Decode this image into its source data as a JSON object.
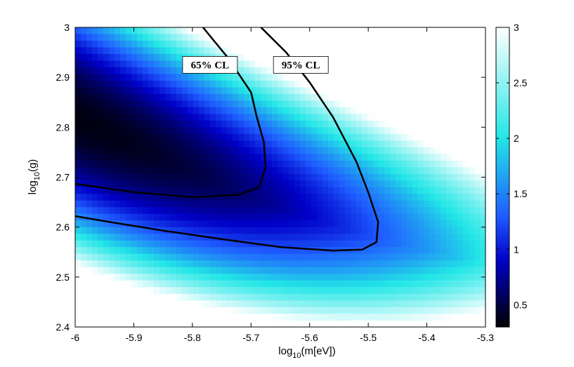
{
  "chart_data": {
    "type": "heatmap",
    "title": "",
    "xlabel": {
      "base": "log",
      "sub": "10",
      "rest": "(m[eV])"
    },
    "ylabel": {
      "base": "log",
      "sub": "10",
      "rest": "(g)"
    },
    "xlim": [
      -6,
      -5.3
    ],
    "ylim": [
      2.4,
      3
    ],
    "x_ticks": [
      "-6",
      "-5.9",
      "-5.8",
      "-5.7",
      "-5.6",
      "-5.5",
      "-5.4",
      "-5.3"
    ],
    "y_ticks": [
      "2.4",
      "2.5",
      "2.6",
      "2.7",
      "2.8",
      "2.9",
      "3"
    ],
    "grid": false,
    "colormap": {
      "name": "black-blue-cyan-white",
      "range": [
        0.3,
        3
      ],
      "ticks": [
        "0.5",
        "1",
        "1.5",
        "2",
        "2.5",
        "3"
      ],
      "stops": [
        {
          "value": 0.3,
          "color": "#000000"
        },
        {
          "value": 0.9,
          "color": "#0000c8"
        },
        {
          "value": 1.3,
          "color": "#1f5cff"
        },
        {
          "value": 2.0,
          "color": "#22e6e6"
        },
        {
          "value": 3.0,
          "color": "#ffffff"
        }
      ]
    },
    "minimum": {
      "x": -6.0,
      "y": 2.82
    },
    "contours": [
      {
        "label": "65% CL",
        "points": [
          [
            -5.782,
            3.0
          ],
          [
            -5.74,
            2.94
          ],
          [
            -5.7,
            2.87
          ],
          [
            -5.69,
            2.82
          ],
          [
            -5.678,
            2.77
          ],
          [
            -5.675,
            2.72
          ],
          [
            -5.686,
            2.68
          ],
          [
            -5.72,
            2.665
          ],
          [
            -5.8,
            2.66
          ],
          [
            -5.9,
            2.67
          ],
          [
            -6.0,
            2.687
          ]
        ]
      },
      {
        "label": "95% CL",
        "points": [
          [
            -5.683,
            3.0
          ],
          [
            -5.64,
            2.95
          ],
          [
            -5.6,
            2.89
          ],
          [
            -5.56,
            2.82
          ],
          [
            -5.52,
            2.73
          ],
          [
            -5.5,
            2.67
          ],
          [
            -5.483,
            2.61
          ],
          [
            -5.486,
            2.57
          ],
          [
            -5.51,
            2.555
          ],
          [
            -5.56,
            2.553
          ],
          [
            -5.65,
            2.56
          ],
          [
            -5.75,
            2.576
          ],
          [
            -5.85,
            2.593
          ],
          [
            -5.95,
            2.612
          ],
          [
            -6.0,
            2.622
          ]
        ]
      }
    ],
    "annotations": [
      {
        "text": "65% CL",
        "x": -5.77,
        "y": 2.925
      },
      {
        "text": "95% CL",
        "x": -5.615,
        "y": 2.925
      }
    ]
  }
}
